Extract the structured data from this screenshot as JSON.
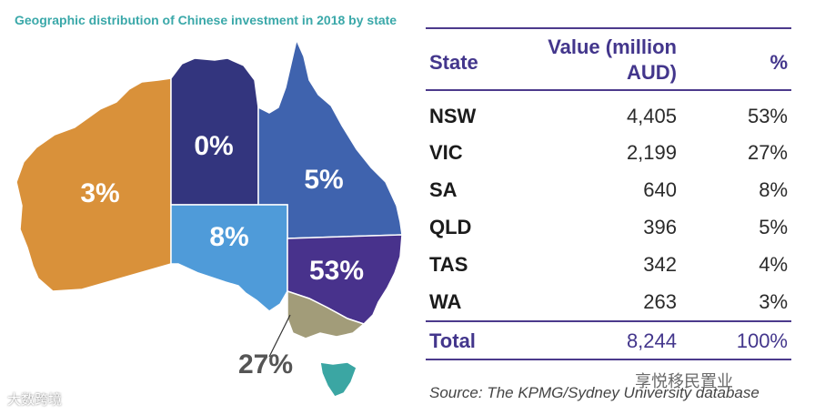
{
  "chart_data": [
    {
      "type": "map",
      "title": "Geographic distribution of Chinese investment in 2018 by state",
      "regions": [
        {
          "name": "WA",
          "label": "3%",
          "color": "#d9913a"
        },
        {
          "name": "NT",
          "label": "0%",
          "color": "#33357e"
        },
        {
          "name": "QLD",
          "label": "5%",
          "color": "#3f63ae"
        },
        {
          "name": "SA",
          "label": "8%",
          "color": "#4f9bd9"
        },
        {
          "name": "NSW",
          "label": "53%",
          "color": "#48328c"
        },
        {
          "name": "VIC",
          "label": "27%",
          "color": "#a29c79"
        },
        {
          "name": "TAS",
          "label": "",
          "color": "#3ba6a3"
        }
      ]
    },
    {
      "type": "table",
      "columns": [
        "State",
        "Value (million AUD)",
        "%"
      ],
      "rows": [
        {
          "state": "NSW",
          "value": 4405,
          "value_text": "4,405",
          "pct": "53%"
        },
        {
          "state": "VIC",
          "value": 2199,
          "value_text": "2,199",
          "pct": "27%"
        },
        {
          "state": "SA",
          "value": 640,
          "value_text": "640",
          "pct": "8%"
        },
        {
          "state": "QLD",
          "value": 396,
          "value_text": "396",
          "pct": "5%"
        },
        {
          "state": "TAS",
          "value": 342,
          "value_text": "342",
          "pct": "4%"
        },
        {
          "state": "WA",
          "value": 263,
          "value_text": "263",
          "pct": "3%"
        }
      ],
      "total": {
        "state": "Total",
        "value": 8244,
        "value_text": "8,244",
        "pct": "100%"
      }
    }
  ],
  "table_header": {
    "state": "State",
    "value_line1": "Value (million",
    "value_line2": "AUD)",
    "pct": "%"
  },
  "source": "Source: The KPMG/Sydney University database",
  "watermarks": {
    "right": "享悦移民置业",
    "left": "大数跨境"
  },
  "colors": {
    "accent": "#43368c",
    "title": "#3aa8a9"
  }
}
